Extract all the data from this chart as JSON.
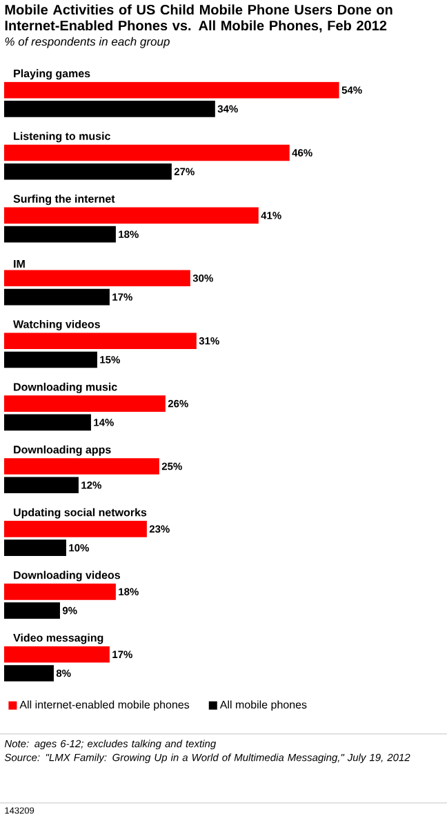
{
  "chart_data": {
    "type": "bar",
    "orientation": "horizontal",
    "title": "Mobile Activities of US Child Mobile Phone Users Done on Internet-Enabled Phones vs. All Mobile Phones, Feb 2012",
    "subtitle": "% of respondents in each group",
    "categories": [
      "Playing games",
      "Listening to music",
      "Surfing the internet",
      "IM",
      "Watching videos",
      "Downloading music",
      "Downloading apps",
      "Updating social networks",
      "Downloading videos",
      "Video messaging"
    ],
    "series": [
      {
        "name": "All internet-enabled mobile phones",
        "color": "#ff0000",
        "values": [
          54,
          46,
          41,
          30,
          31,
          26,
          25,
          23,
          18,
          17
        ],
        "value_labels": [
          "54%",
          "46%",
          "41%",
          "30%",
          "31%",
          "26%",
          "25%",
          "23%",
          "18%",
          "17%"
        ]
      },
      {
        "name": "All mobile phones",
        "color": "#000000",
        "values": [
          34,
          27,
          18,
          17,
          15,
          14,
          12,
          10,
          9,
          8
        ],
        "value_labels": [
          "34%",
          "27%",
          "18%",
          "17%",
          "15%",
          "14%",
          "12%",
          "10%",
          "9%",
          "8%"
        ]
      }
    ],
    "legend": "bottom",
    "annotations": [
      "Note: ages 6-12; excludes talking and texting",
      "Source: \"LMX Family: Growing Up in a World of Multimedia Messaging,\" July 19, 2012",
      "143209"
    ]
  }
}
